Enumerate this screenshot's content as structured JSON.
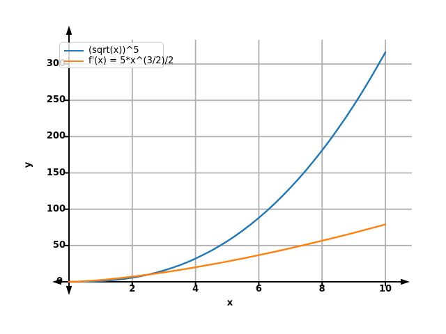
{
  "chart_data": {
    "type": "line",
    "title": "",
    "xlabel": "x",
    "ylabel": "y",
    "grid": true,
    "legend_position": "upper left",
    "xlim": [
      0,
      10.8
    ],
    "ylim": [
      -8,
      334
    ],
    "x_tick_labels": [
      "2",
      "4",
      "6",
      "8",
      "10"
    ],
    "x_tick_values": [
      2,
      4,
      6,
      8,
      10
    ],
    "y_tick_labels": [
      "50",
      "100",
      "150",
      "200",
      "250",
      "300"
    ],
    "y_tick_values": [
      50,
      100,
      150,
      200,
      250,
      300
    ],
    "origin_label": "0",
    "colors": {
      "grid": "#b0b0b0",
      "axis": "#000000",
      "background": "#ffffff"
    },
    "x": [
      0,
      0.25,
      0.5,
      0.75,
      1,
      1.25,
      1.5,
      1.75,
      2,
      2.25,
      2.5,
      2.75,
      3,
      3.25,
      3.5,
      3.75,
      4,
      4.25,
      4.5,
      4.75,
      5,
      5.25,
      5.5,
      5.75,
      6,
      6.25,
      6.5,
      6.75,
      7,
      7.25,
      7.5,
      7.75,
      8,
      8.25,
      8.5,
      8.75,
      9,
      9.25,
      9.5,
      9.75,
      10
    ],
    "series": [
      {
        "name": "(sqrt(x))^5",
        "color": "#1f77b4",
        "values": [
          0,
          0.03,
          0.18,
          0.49,
          1,
          1.75,
          2.76,
          4.05,
          5.66,
          7.59,
          9.88,
          12.54,
          15.59,
          19.04,
          22.92,
          27.23,
          32,
          37.24,
          42.96,
          49.17,
          55.9,
          63.15,
          70.94,
          79.28,
          88.18,
          97.66,
          107.71,
          118.37,
          129.64,
          141.53,
          154.05,
          167.21,
          181.02,
          195.49,
          210.63,
          226.45,
          243,
          260.24,
          278.18,
          296.84,
          316.23
        ]
      },
      {
        "name": "f'(x) = 5*x^(3/2)/2",
        "color": "#ff7f0e",
        "values": [
          0,
          0.31,
          0.88,
          1.62,
          2.5,
          3.49,
          4.59,
          5.79,
          7.07,
          8.44,
          9.88,
          11.4,
          12.99,
          14.65,
          16.37,
          18.15,
          20,
          21.91,
          23.86,
          25.88,
          27.95,
          30.07,
          32.25,
          34.47,
          36.74,
          39.06,
          41.43,
          43.84,
          46.3,
          48.8,
          51.35,
          53.94,
          56.57,
          59.24,
          61.95,
          64.71,
          67.5,
          70.33,
          73.2,
          76.11,
          79.06
        ]
      }
    ]
  }
}
